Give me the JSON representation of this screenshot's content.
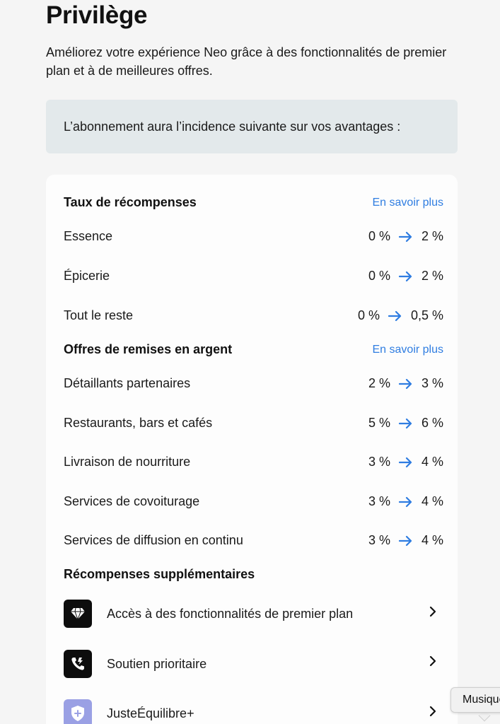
{
  "header": {
    "title": "Privilège",
    "subtitle": "Améliorez votre expérience Neo grâce à des fonctionnalités de premier plan et à de meilleures offres."
  },
  "notice": "L’abonnement aura l’incidence suivante sur vos avantages :",
  "rewards": {
    "title": "Taux de récompenses",
    "link": "En savoir plus",
    "rows": [
      {
        "label": "Essence",
        "from": "0 %",
        "to": "2 %"
      },
      {
        "label": "Épicerie",
        "from": "0 %",
        "to": "2 %"
      },
      {
        "label": "Tout le reste",
        "from": "0 %",
        "to": "0,5 %"
      }
    ]
  },
  "cashback": {
    "title": "Offres de remises en argent",
    "link": "En savoir plus",
    "rows": [
      {
        "label": "Détaillants partenaires",
        "from": "2 %",
        "to": "3 %"
      },
      {
        "label": "Restaurants, bars et cafés",
        "from": "5 %",
        "to": "6 %"
      },
      {
        "label": "Livraison de nourriture",
        "from": "3 %",
        "to": "4 %"
      },
      {
        "label": "Services de covoiturage",
        "from": "3 %",
        "to": "4 %"
      },
      {
        "label": "Services de diffusion en continu",
        "from": "3 %",
        "to": "4 %"
      }
    ]
  },
  "extras": {
    "title": "Récompenses supplémentaires",
    "items": [
      {
        "label": "Accès à des fonctionnalités de premier plan",
        "icon": "diamond-icon"
      },
      {
        "label": "Soutien prioritaire",
        "icon": "priority-phone-icon"
      },
      {
        "label": "JusteÉquilibre+",
        "icon": "shield-plus-icon"
      }
    ]
  },
  "tooltip": "Musique",
  "colors": {
    "accent": "#2f7de1",
    "notice_bg": "#e3e9eb",
    "purple_icon": "#9aa0e4"
  }
}
